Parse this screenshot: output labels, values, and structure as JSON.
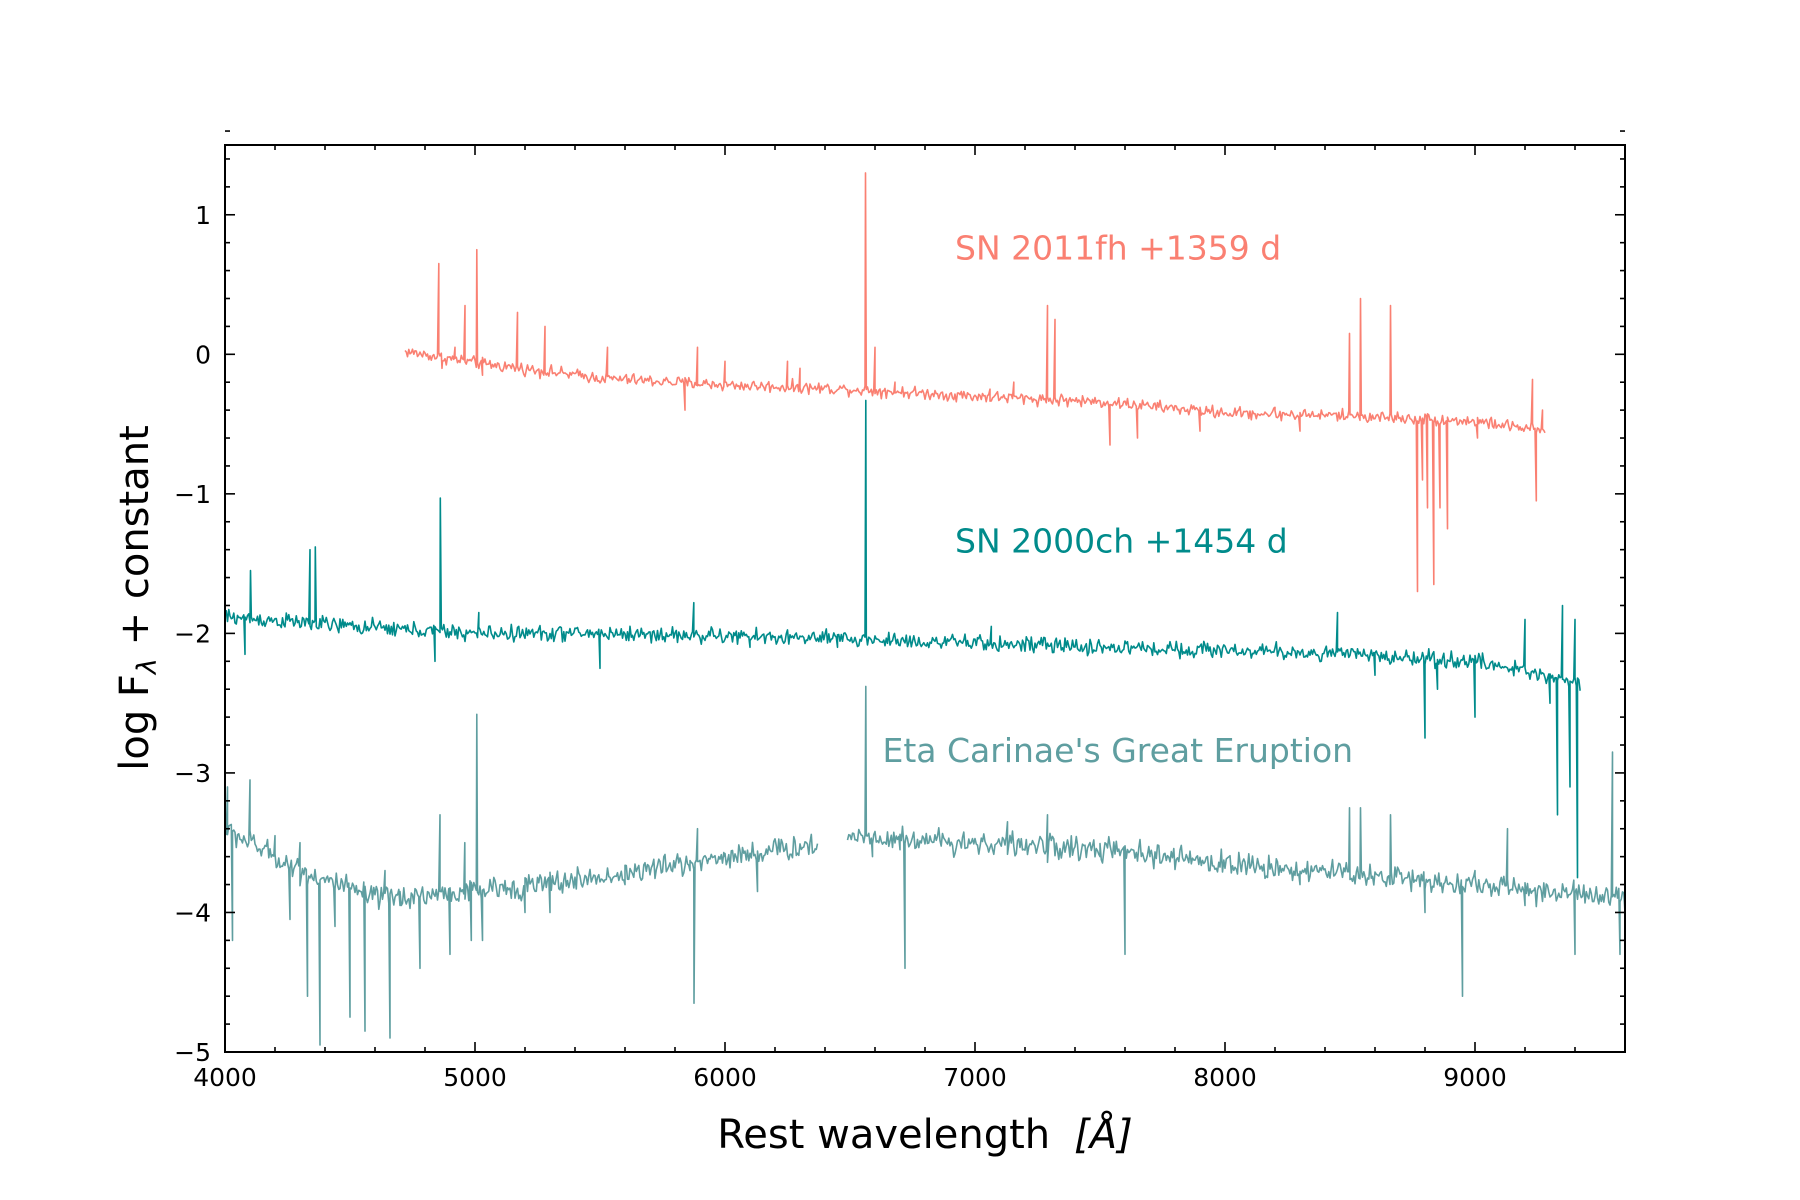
{
  "chart_data": {
    "type": "line",
    "xlabel": "Rest wavelength",
    "xlabel_unit": "[Å]",
    "ylabel": "log F",
    "ylabel_subscript": "λ",
    "ylabel_suffix": " + constant",
    "xlim": [
      4000,
      9600
    ],
    "ylim": [
      -5,
      1.5
    ],
    "x_ticks": [
      4000,
      5000,
      6000,
      7000,
      8000,
      9000
    ],
    "x_tick_labels": [
      "4000",
      "5000",
      "6000",
      "7000",
      "8000",
      "9000"
    ],
    "y_ticks": [
      1,
      0,
      -1,
      -2,
      -3,
      -4,
      -5
    ],
    "y_tick_labels": [
      "1",
      "0",
      "−1",
      "−2",
      "−3",
      "−4",
      "−5"
    ],
    "grid": false,
    "legend": "none",
    "series": [
      {
        "name": "SN 2011fh  +1359 d",
        "label_at": [
          6920,
          0.68
        ],
        "color": "#fa8072",
        "noise": 0.03,
        "x_range": [
          4720,
          9280
        ],
        "baseline": [
          [
            4720,
            0.02
          ],
          [
            5000,
            -0.06
          ],
          [
            5500,
            -0.17
          ],
          [
            6000,
            -0.22
          ],
          [
            6500,
            -0.25
          ],
          [
            7000,
            -0.3
          ],
          [
            7500,
            -0.34
          ],
          [
            8000,
            -0.42
          ],
          [
            8500,
            -0.44
          ],
          [
            9000,
            -0.48
          ],
          [
            9280,
            -0.55
          ]
        ],
        "points": [
          [
            4855,
            0.65
          ],
          [
            4868,
            -0.1
          ],
          [
            4920,
            0.05
          ],
          [
            4960,
            0.35
          ],
          [
            5007,
            0.75
          ],
          [
            5030,
            -0.15
          ],
          [
            5170,
            0.3
          ],
          [
            5280,
            0.2
          ],
          [
            5530,
            0.05
          ],
          [
            5840,
            -0.4
          ],
          [
            5890,
            0.05
          ],
          [
            6000,
            -0.05
          ],
          [
            6250,
            -0.05
          ],
          [
            6300,
            -0.1
          ],
          [
            6562,
            1.3
          ],
          [
            6600,
            0.05
          ],
          [
            6680,
            -0.2
          ],
          [
            7060,
            -0.25
          ],
          [
            7155,
            -0.2
          ],
          [
            7290,
            0.35
          ],
          [
            7320,
            0.25
          ],
          [
            7540,
            -0.65
          ],
          [
            7650,
            -0.6
          ],
          [
            7900,
            -0.55
          ],
          [
            8200,
            -0.38
          ],
          [
            8300,
            -0.55
          ],
          [
            8498,
            0.15
          ],
          [
            8542,
            0.4
          ],
          [
            8662,
            0.35
          ],
          [
            8770,
            -1.7
          ],
          [
            8790,
            -0.9
          ],
          [
            8810,
            -1.1
          ],
          [
            8835,
            -1.65
          ],
          [
            8860,
            -1.1
          ],
          [
            8890,
            -1.25
          ],
          [
            9010,
            -0.6
          ],
          [
            9230,
            -0.18
          ],
          [
            9245,
            -1.05
          ],
          [
            9270,
            -0.4
          ]
        ],
        "gaps": []
      },
      {
        "name": "SN 2000ch  +1454 d",
        "label_at": [
          6920,
          -1.42
        ],
        "color": "#008b8b",
        "noise": 0.04,
        "x_range": [
          4000,
          9420
        ],
        "baseline": [
          [
            4000,
            -1.88
          ],
          [
            4500,
            -1.95
          ],
          [
            5000,
            -2.0
          ],
          [
            5500,
            -2.0
          ],
          [
            6000,
            -2.02
          ],
          [
            6500,
            -2.04
          ],
          [
            7000,
            -2.07
          ],
          [
            7500,
            -2.1
          ],
          [
            8000,
            -2.12
          ],
          [
            8500,
            -2.15
          ],
          [
            9000,
            -2.2
          ],
          [
            9420,
            -2.35
          ]
        ],
        "points": [
          [
            4080,
            -2.15
          ],
          [
            4102,
            -1.55
          ],
          [
            4340,
            -1.4
          ],
          [
            4361,
            -1.38
          ],
          [
            4471,
            -1.9
          ],
          [
            4840,
            -2.2
          ],
          [
            4861,
            -1.03
          ],
          [
            5015,
            -1.85
          ],
          [
            5500,
            -2.25
          ],
          [
            5875,
            -1.78
          ],
          [
            6100,
            -2.1
          ],
          [
            6450,
            -2.1
          ],
          [
            6563,
            -0.33
          ],
          [
            6678,
            -2.0
          ],
          [
            7065,
            -1.95
          ],
          [
            8450,
            -1.85
          ],
          [
            8600,
            -2.3
          ],
          [
            8800,
            -2.75
          ],
          [
            8850,
            -2.4
          ],
          [
            9000,
            -2.6
          ],
          [
            9200,
            -1.9
          ],
          [
            9300,
            -2.5
          ],
          [
            9330,
            -3.3
          ],
          [
            9350,
            -1.8
          ],
          [
            9380,
            -3.1
          ],
          [
            9400,
            -1.9
          ],
          [
            9410,
            -3.75
          ],
          [
            9420,
            -2.4
          ]
        ],
        "gaps": []
      },
      {
        "name": "Eta Carinae's Great Eruption",
        "label_at": [
          6630,
          -2.92
        ],
        "color": "#5f9ea0",
        "noise": 0.06,
        "x_range": [
          4000,
          9600
        ],
        "baseline": [
          [
            4000,
            -3.4
          ],
          [
            4300,
            -3.7
          ],
          [
            4600,
            -3.9
          ],
          [
            5000,
            -3.85
          ],
          [
            5500,
            -3.75
          ],
          [
            6000,
            -3.6
          ],
          [
            6360,
            -3.52
          ],
          [
            6500,
            -3.45
          ],
          [
            7000,
            -3.5
          ],
          [
            7500,
            -3.55
          ],
          [
            8000,
            -3.65
          ],
          [
            8500,
            -3.72
          ],
          [
            9000,
            -3.8
          ],
          [
            9600,
            -3.9
          ]
        ],
        "points": [
          [
            4010,
            -3.1
          ],
          [
            4030,
            -4.2
          ],
          [
            4100,
            -3.05
          ],
          [
            4200,
            -3.45
          ],
          [
            4260,
            -4.05
          ],
          [
            4300,
            -3.5
          ],
          [
            4330,
            -4.6
          ],
          [
            4380,
            -4.95
          ],
          [
            4440,
            -4.1
          ],
          [
            4500,
            -4.75
          ],
          [
            4560,
            -4.85
          ],
          [
            4640,
            -3.7
          ],
          [
            4660,
            -4.9
          ],
          [
            4700,
            -3.95
          ],
          [
            4780,
            -4.4
          ],
          [
            4860,
            -3.3
          ],
          [
            4900,
            -4.3
          ],
          [
            4959,
            -3.5
          ],
          [
            4985,
            -4.2
          ],
          [
            5007,
            -2.58
          ],
          [
            5030,
            -4.2
          ],
          [
            5200,
            -4.0
          ],
          [
            5300,
            -4.0
          ],
          [
            5600,
            -3.8
          ],
          [
            5860,
            -3.7
          ],
          [
            5876,
            -4.65
          ],
          [
            5890,
            -3.4
          ],
          [
            6000,
            -3.6
          ],
          [
            6130,
            -3.85
          ],
          [
            6360,
            -3.55
          ],
          [
            6500,
            -3.45
          ],
          [
            6563,
            -2.38
          ],
          [
            6590,
            -3.6
          ],
          [
            6700,
            -3.55
          ],
          [
            6720,
            -4.4
          ],
          [
            7130,
            -3.35
          ],
          [
            7290,
            -3.3
          ],
          [
            7500,
            -3.6
          ],
          [
            7600,
            -4.3
          ],
          [
            7700,
            -3.6
          ],
          [
            8300,
            -3.8
          ],
          [
            8498,
            -3.25
          ],
          [
            8542,
            -3.25
          ],
          [
            8662,
            -3.3
          ],
          [
            8800,
            -4.0
          ],
          [
            8950,
            -4.6
          ],
          [
            9000,
            -3.7
          ],
          [
            9130,
            -3.4
          ],
          [
            9200,
            -3.95
          ],
          [
            9400,
            -4.3
          ],
          [
            9550,
            -2.85
          ],
          [
            9580,
            -4.3
          ],
          [
            9600,
            -4.0
          ]
        ],
        "gaps": [
          [
            6370,
            6490
          ]
        ]
      }
    ]
  }
}
